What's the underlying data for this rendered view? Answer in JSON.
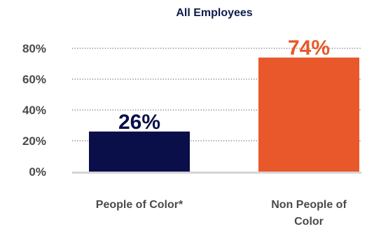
{
  "chart_data": {
    "type": "bar",
    "title": "All Employees",
    "categories": [
      [
        "People of Color*"
      ],
      [
        "Non People of",
        "Color"
      ]
    ],
    "values": [
      26,
      74
    ],
    "value_labels": [
      "26%",
      "74%"
    ],
    "colors": [
      "#0a0f4a",
      "#e8582a"
    ],
    "ylim": [
      0,
      80
    ],
    "yticks": [
      0,
      20,
      40,
      60,
      80
    ],
    "ytick_labels": [
      "0%",
      "20%",
      "40%",
      "60%",
      "80%"
    ],
    "grid": true,
    "legend": "none"
  }
}
